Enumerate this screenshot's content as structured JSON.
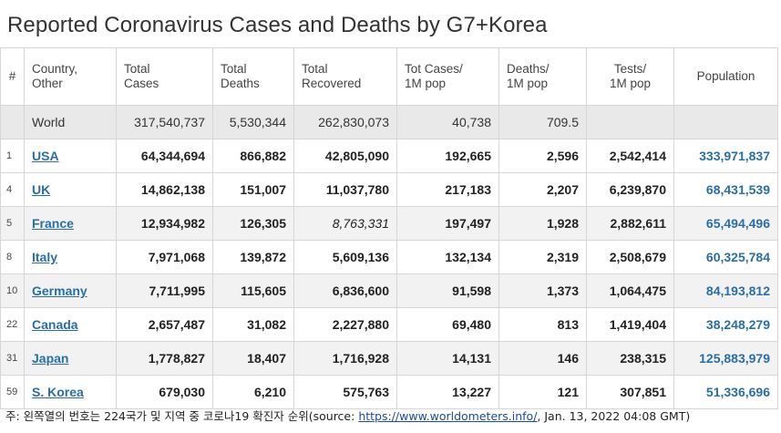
{
  "title": "Reported Coronavirus Cases and Deaths by G7+Korea",
  "headers": {
    "idx": "#",
    "country": [
      "Country,",
      "Other"
    ],
    "total_cases": [
      "Total",
      "Cases"
    ],
    "total_deaths": [
      "Total",
      "Deaths"
    ],
    "total_recovered": [
      "Total",
      "Recovered"
    ],
    "cases_per_m": [
      "Tot Cases/",
      "1M pop"
    ],
    "deaths_per_m": [
      "Deaths/",
      "1M pop"
    ],
    "tests_per_m": [
      "Tests/",
      "1M pop"
    ],
    "population": "Population"
  },
  "world": {
    "country": "World",
    "total_cases": "317,540,737",
    "total_deaths": "5,530,344",
    "total_recovered": "262,830,073",
    "cases_per_m": "40,738",
    "deaths_per_m": "709.5",
    "tests_per_m": "",
    "population": ""
  },
  "rows": [
    {
      "idx": "1",
      "country": "USA",
      "total_cases": "64,344,694",
      "total_deaths": "866,882",
      "total_recovered": "42,805,090",
      "cases_per_m": "192,665",
      "deaths_per_m": "2,596",
      "tests_per_m": "2,542,414",
      "population": "333,971,837"
    },
    {
      "idx": "4",
      "country": "UK",
      "total_cases": "14,862,138",
      "total_deaths": "151,007",
      "total_recovered": "11,037,780",
      "cases_per_m": "217,183",
      "deaths_per_m": "2,207",
      "tests_per_m": "6,239,870",
      "population": "68,431,539"
    },
    {
      "idx": "5",
      "country": "France",
      "total_cases": "12,934,982",
      "total_deaths": "126,305",
      "total_recovered": "8,763,331",
      "cases_per_m": "197,497",
      "deaths_per_m": "1,928",
      "tests_per_m": "2,882,611",
      "population": "65,494,496"
    },
    {
      "idx": "8",
      "country": "Italy",
      "total_cases": "7,971,068",
      "total_deaths": "139,872",
      "total_recovered": "5,609,136",
      "cases_per_m": "132,134",
      "deaths_per_m": "2,319",
      "tests_per_m": "2,508,679",
      "population": "60,325,784"
    },
    {
      "idx": "10",
      "country": "Germany",
      "total_cases": "7,711,995",
      "total_deaths": "115,605",
      "total_recovered": "6,836,600",
      "cases_per_m": "91,598",
      "deaths_per_m": "1,373",
      "tests_per_m": "1,064,475",
      "population": "84,193,812"
    },
    {
      "idx": "22",
      "country": "Canada",
      "total_cases": "2,657,487",
      "total_deaths": "31,082",
      "total_recovered": "2,227,880",
      "cases_per_m": "69,480",
      "deaths_per_m": "813",
      "tests_per_m": "1,419,404",
      "population": "38,248,279"
    },
    {
      "idx": "31",
      "country": "Japan",
      "total_cases": "1,778,827",
      "total_deaths": "18,407",
      "total_recovered": "1,716,928",
      "cases_per_m": "14,131",
      "deaths_per_m": "146",
      "tests_per_m": "238,315",
      "population": "125,883,979"
    },
    {
      "idx": "59",
      "country": "S. Korea",
      "total_cases": "679,030",
      "total_deaths": "6,210",
      "total_recovered": "575,763",
      "cases_per_m": "13,227",
      "deaths_per_m": "121",
      "tests_per_m": "307,851",
      "population": "51,336,696"
    }
  ],
  "footer": {
    "prefix": "주: 왼쪽열의 번호는 224국가 및 지역 중 코로나19 확진자 순위(source: ",
    "link": "https://www.worldometers.info/",
    "suffix": ", Jan. 13, 2022 04:08 GMT)"
  }
}
